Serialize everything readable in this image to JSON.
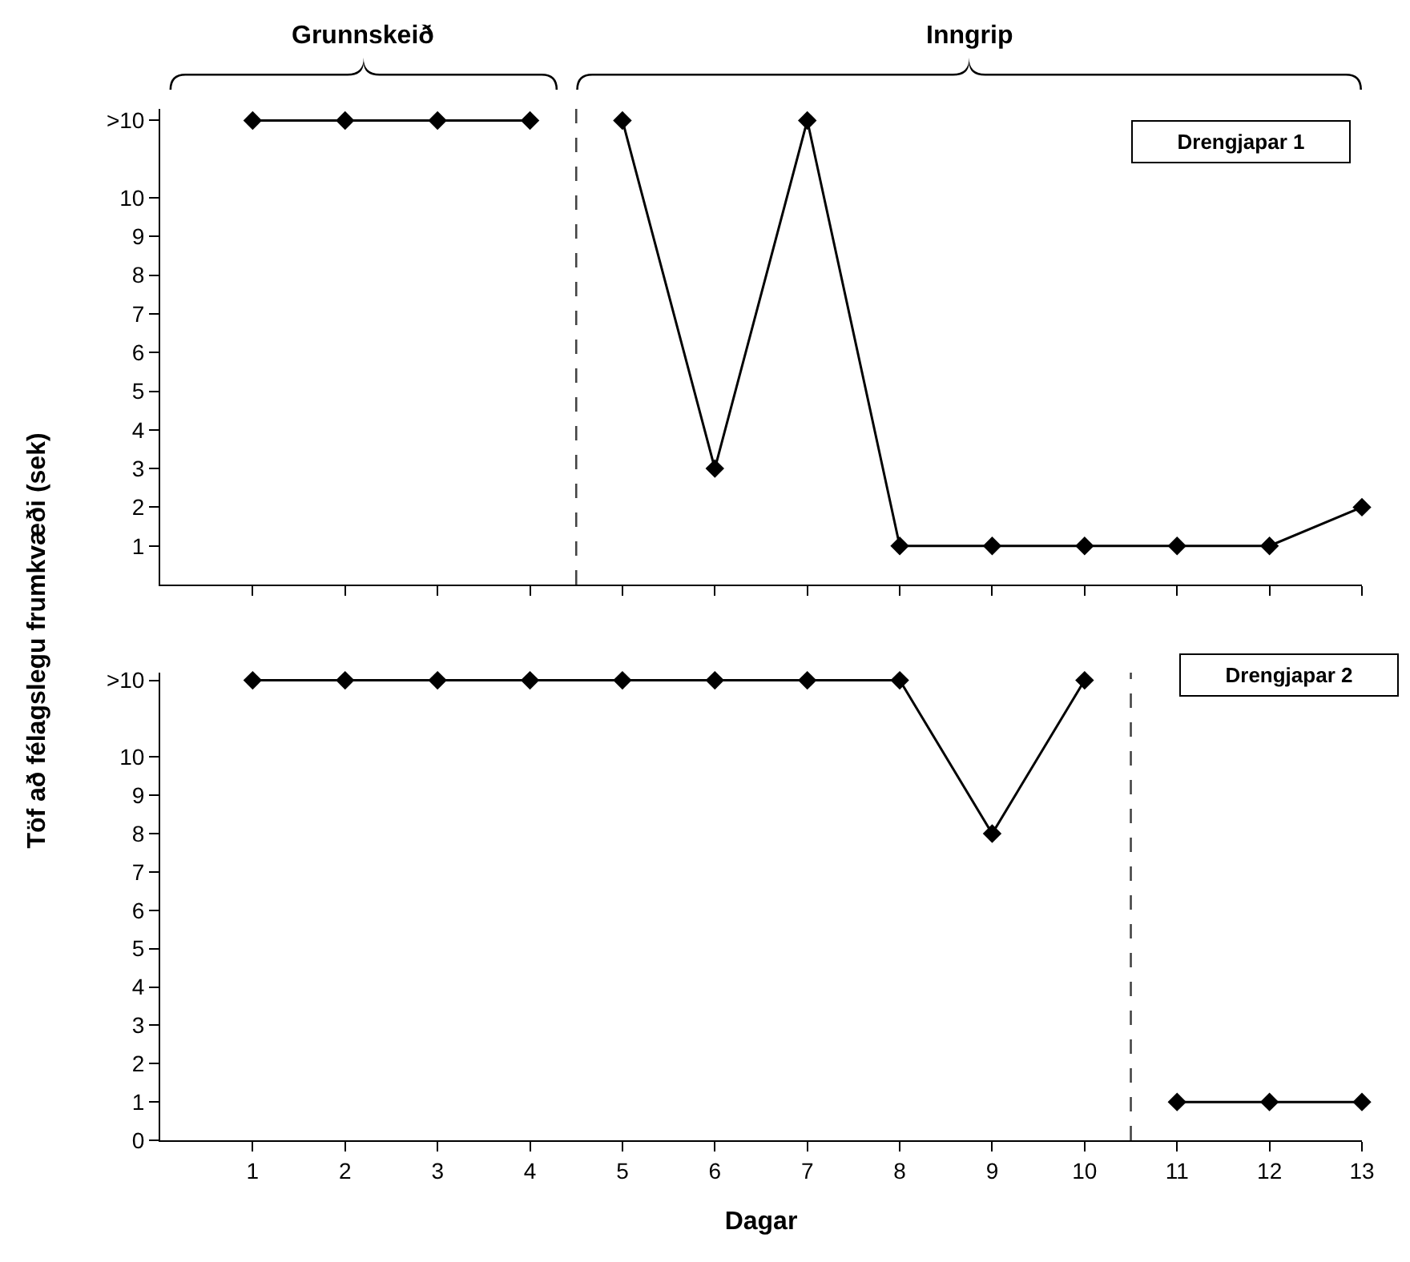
{
  "chart_data": [
    {
      "type": "line",
      "ylabel": "Töf að félagslegu frumkvæði (sek)",
      "annotations": [
        "Grunnskeið",
        "Inngrip",
        "Drengjapar 1"
      ],
      "series": [
        {
          "color": "#000000",
          "x": [
            1,
            2,
            3,
            4
          ],
          "values": [
            12,
            12,
            12,
            12
          ]
        },
        {
          "color": "#000000",
          "x": [
            5,
            6,
            7,
            8,
            9,
            10,
            11,
            12,
            13
          ],
          "values": [
            12,
            3,
            12,
            1,
            1,
            1,
            1,
            1,
            2
          ]
        }
      ],
      "xlim": [
        0,
        13
      ],
      "xticks": [
        {
          "value": 1,
          "label": null
        },
        {
          "value": 2,
          "label": null
        },
        {
          "value": 3,
          "label": null
        },
        {
          "value": 4,
          "label": null
        },
        {
          "value": 5,
          "label": null
        },
        {
          "value": 6,
          "label": null
        },
        {
          "value": 7,
          "label": null
        },
        {
          "value": 8,
          "label": null
        },
        {
          "value": 9,
          "label": null
        },
        {
          "value": 10,
          "label": null
        },
        {
          "value": 11,
          "label": null
        },
        {
          "value": 12,
          "label": null
        },
        {
          "value": 13,
          "label": null
        }
      ],
      "ylim": [
        0,
        12.3
      ],
      "yticks": [
        1,
        2,
        3,
        4,
        5,
        6,
        7,
        8,
        9,
        10,
        {
          "value": 12,
          "label": ">10"
        }
      ],
      "tick_labels": "y",
      "ref_lines": [
        {
          "axis": "x",
          "value": 4.5,
          "line_style": "dashed"
        }
      ],
      "marker": "diamond",
      "line_style": "solid",
      "grid": false
    },
    {
      "type": "line",
      "xlabel": "Dagar",
      "annotations": [
        "Drengjapar 2"
      ],
      "series": [
        {
          "color": "#000000",
          "x": [
            1,
            2,
            3,
            4,
            5,
            6,
            7,
            8,
            9,
            10
          ],
          "values": [
            12,
            12,
            12,
            12,
            12,
            12,
            12,
            12,
            8,
            12
          ]
        },
        {
          "color": "#000000",
          "x": [
            11,
            12,
            13
          ],
          "values": [
            1,
            1,
            1
          ]
        }
      ],
      "xlim": [
        0,
        13
      ],
      "xticks": [
        1,
        2,
        3,
        4,
        5,
        6,
        7,
        8,
        9,
        10,
        11,
        12,
        13
      ],
      "ylim": [
        0,
        12.2
      ],
      "yticks": [
        0,
        1,
        2,
        3,
        4,
        5,
        6,
        7,
        8,
        9,
        10,
        {
          "value": 12,
          "label": ">10"
        }
      ],
      "ref_lines": [
        {
          "axis": "x",
          "value": 10.5,
          "line_style": "dashed"
        }
      ],
      "marker": "diamond",
      "line_style": "solid",
      "grid": false
    }
  ]
}
